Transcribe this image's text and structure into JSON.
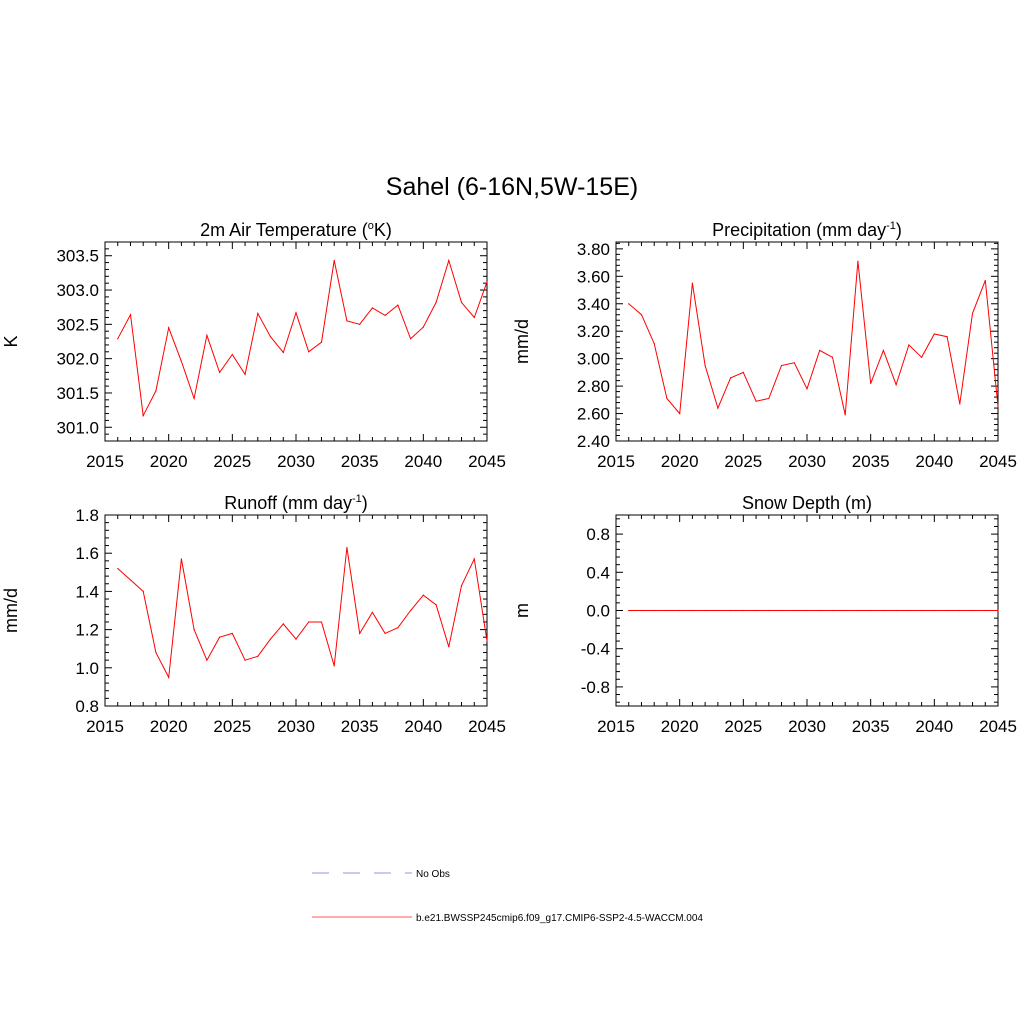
{
  "title": "Sahel (6-16N,5W-15E)",
  "legend": {
    "entries": [
      {
        "label": "No Obs",
        "color": "#a9a9ee",
        "dash": true
      },
      {
        "label": "b.e21.BWSSP245cmip6.f09_g17.CMIP6-SSP2-4.5-WACCM.004",
        "color": "#ff7a7a",
        "dash": false
      }
    ]
  },
  "chart_data": [
    {
      "type": "line",
      "title": "2m Air Temperature (",
      "title_sup": "o",
      "title_tail": "K)",
      "ylabel": "K",
      "xlim": [
        2015,
        2045
      ],
      "ylim": [
        300.8,
        303.7
      ],
      "xticks": [
        2015,
        2020,
        2025,
        2030,
        2035,
        2040,
        2045
      ],
      "xtick_labels": [
        "2015",
        "2020",
        "2025",
        "2030",
        "2035",
        "2040",
        "2045"
      ],
      "yticks": [
        301.0,
        301.5,
        302.0,
        302.5,
        303.0,
        303.5
      ],
      "ytick_labels": [
        "301.0",
        "301.5",
        "302.0",
        "302.5",
        "303.0",
        "303.5"
      ],
      "series": [
        {
          "name": "b.e21.BWSSP245cmip6.f09_g17.CMIP6-SSP2-4.5-WACCM.004",
          "color": "#ff0000",
          "x": [
            2016,
            2017,
            2018,
            2019,
            2020,
            2021,
            2022,
            2023,
            2024,
            2025,
            2026,
            2027,
            2028,
            2029,
            2030,
            2031,
            2032,
            2033,
            2034,
            2035,
            2036,
            2037,
            2038,
            2039,
            2040,
            2041,
            2042,
            2043,
            2044,
            2045
          ],
          "y": [
            302.29,
            302.64,
            301.17,
            301.53,
            302.45,
            301.96,
            301.42,
            302.34,
            301.8,
            302.06,
            301.77,
            302.66,
            302.32,
            302.09,
            302.67,
            302.1,
            302.24,
            303.43,
            302.55,
            302.5,
            302.74,
            302.63,
            302.78,
            302.29,
            302.46,
            302.82,
            303.43,
            302.82,
            302.6,
            303.12
          ]
        }
      ]
    },
    {
      "type": "line",
      "title": "Precipitation (mm day",
      "title_sup": "-1",
      "title_tail": ")",
      "ylabel": "mm/d",
      "xlim": [
        2015,
        2045
      ],
      "ylim": [
        2.4,
        3.85
      ],
      "xticks": [
        2015,
        2020,
        2025,
        2030,
        2035,
        2040,
        2045
      ],
      "xtick_labels": [
        "2015",
        "2020",
        "2025",
        "2030",
        "2035",
        "2040",
        "2045"
      ],
      "yticks": [
        2.4,
        2.6,
        2.8,
        3.0,
        3.2,
        3.4,
        3.6,
        3.8
      ],
      "ytick_labels": [
        "2.40",
        "2.60",
        "2.80",
        "3.00",
        "3.20",
        "3.40",
        "3.60",
        "3.80"
      ],
      "series": [
        {
          "name": "b.e21.BWSSP245cmip6.f09_g17.CMIP6-SSP2-4.5-WACCM.004",
          "color": "#ff0000",
          "x": [
            2016,
            2017,
            2018,
            2019,
            2020,
            2021,
            2022,
            2023,
            2024,
            2025,
            2026,
            2027,
            2028,
            2029,
            2030,
            2031,
            2032,
            2033,
            2034,
            2035,
            2036,
            2037,
            2038,
            2039,
            2040,
            2041,
            2042,
            2043,
            2044,
            2045
          ],
          "y": [
            3.4,
            3.32,
            3.11,
            2.71,
            2.6,
            3.55,
            2.95,
            2.64,
            2.86,
            2.9,
            2.69,
            2.71,
            2.95,
            2.97,
            2.78,
            3.06,
            3.01,
            2.59,
            3.71,
            2.82,
            3.06,
            2.81,
            3.1,
            3.01,
            3.18,
            3.16,
            2.67,
            3.33,
            3.57,
            2.65
          ]
        }
      ]
    },
    {
      "type": "line",
      "title": "Runoff (mm day",
      "title_sup": "-1",
      "title_tail": ")",
      "ylabel": "mm/d",
      "xlim": [
        2015,
        2045
      ],
      "ylim": [
        0.8,
        1.8
      ],
      "xticks": [
        2015,
        2020,
        2025,
        2030,
        2035,
        2040,
        2045
      ],
      "xtick_labels": [
        "2015",
        "2020",
        "2025",
        "2030",
        "2035",
        "2040",
        "2045"
      ],
      "yticks": [
        0.8,
        1.0,
        1.2,
        1.4,
        1.6,
        1.8
      ],
      "ytick_labels": [
        "0.8",
        "1.0",
        "1.2",
        "1.4",
        "1.6",
        "1.8"
      ],
      "series": [
        {
          "name": "b.e21.BWSSP245cmip6.f09_g17.CMIP6-SSP2-4.5-WACCM.004",
          "color": "#ff0000",
          "x": [
            2016,
            2017,
            2018,
            2019,
            2020,
            2021,
            2022,
            2023,
            2024,
            2025,
            2026,
            2027,
            2028,
            2029,
            2030,
            2031,
            2032,
            2033,
            2034,
            2035,
            2036,
            2037,
            2038,
            2039,
            2040,
            2041,
            2042,
            2043,
            2044,
            2045
          ],
          "y": [
            1.52,
            1.46,
            1.4,
            1.08,
            0.95,
            1.57,
            1.2,
            1.04,
            1.16,
            1.18,
            1.04,
            1.06,
            1.15,
            1.23,
            1.15,
            1.24,
            1.24,
            1.01,
            1.63,
            1.18,
            1.29,
            1.18,
            1.21,
            1.3,
            1.38,
            1.33,
            1.11,
            1.43,
            1.57,
            1.14
          ]
        }
      ]
    },
    {
      "type": "line",
      "title": "Snow Depth (m)",
      "title_sup": "",
      "title_tail": "",
      "ylabel": "m",
      "xlim": [
        2015,
        2045
      ],
      "ylim": [
        -1.0,
        1.0
      ],
      "xticks": [
        2015,
        2020,
        2025,
        2030,
        2035,
        2040,
        2045
      ],
      "xtick_labels": [
        "2015",
        "2020",
        "2025",
        "2030",
        "2035",
        "2040",
        "2045"
      ],
      "yticks": [
        -0.8,
        -0.4,
        0.0,
        0.4,
        0.8
      ],
      "ytick_labels": [
        "-0.8",
        "-0.4",
        "0.0",
        "0.4",
        "0.8"
      ],
      "series": [
        {
          "name": "b.e21.BWSSP245cmip6.f09_g17.CMIP6-SSP2-4.5-WACCM.004",
          "color": "#ff0000",
          "x": [
            2016,
            2017,
            2018,
            2019,
            2020,
            2021,
            2022,
            2023,
            2024,
            2025,
            2026,
            2027,
            2028,
            2029,
            2030,
            2031,
            2032,
            2033,
            2034,
            2035,
            2036,
            2037,
            2038,
            2039,
            2040,
            2041,
            2042,
            2043,
            2044,
            2045
          ],
          "y": [
            0,
            0,
            0,
            0,
            0,
            0,
            0,
            0,
            0,
            0,
            0,
            0,
            0,
            0,
            0,
            0,
            0,
            0,
            0,
            0,
            0,
            0,
            0,
            0,
            0,
            0,
            0,
            0,
            0,
            0
          ]
        }
      ]
    }
  ]
}
